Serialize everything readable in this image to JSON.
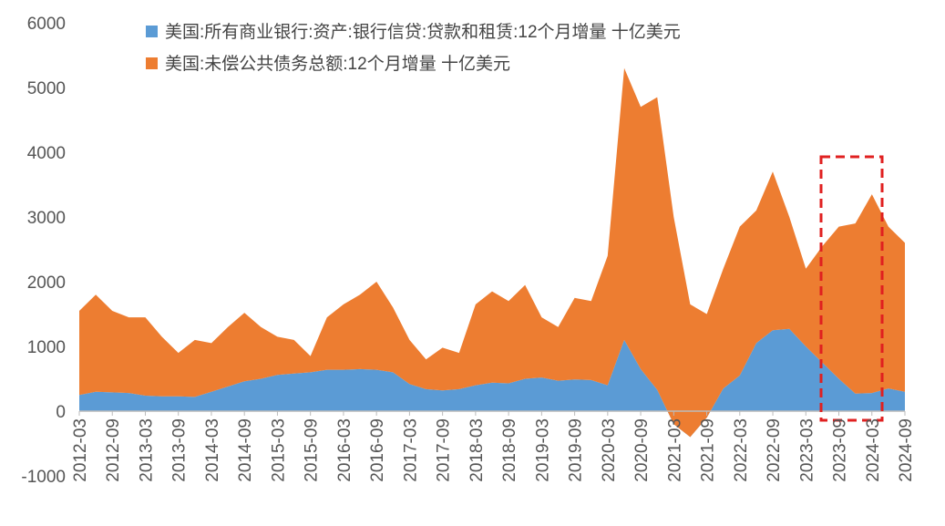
{
  "chart_data": {
    "type": "stacked_area",
    "categories": [
      "2012-03",
      null,
      "2012-09",
      null,
      "2013-03",
      null,
      "2013-09",
      null,
      "2014-03",
      null,
      "2014-09",
      null,
      "2015-03",
      null,
      "2015-09",
      null,
      "2016-03",
      null,
      "2016-09",
      null,
      "2017-03",
      null,
      "2017-09",
      null,
      "2018-03",
      null,
      "2018-09",
      null,
      "2019-03",
      null,
      "2019-09",
      null,
      "2020-03",
      null,
      "2020-09",
      null,
      "2021-03",
      null,
      "2021-09",
      null,
      "2022-03",
      null,
      "2022-09",
      null,
      "2023-03",
      null,
      "2023-09",
      null,
      "2024-03",
      null,
      "2024-09"
    ],
    "series": [
      {
        "name": "美国:所有商业银行:资产:银行信贷:贷款和租赁:12个月增量 十亿美元",
        "color": "#5b9bd5",
        "values": [
          250,
          300,
          290,
          280,
          240,
          230,
          230,
          220,
          300,
          380,
          460,
          500,
          560,
          580,
          600,
          640,
          640,
          650,
          640,
          600,
          420,
          340,
          320,
          340,
          400,
          440,
          430,
          500,
          520,
          470,
          490,
          480,
          400,
          1100,
          650,
          330,
          -200,
          -400,
          -100,
          350,
          550,
          1050,
          1250,
          1270,
          1000,
          750,
          500,
          270,
          280,
          350,
          300
        ]
      },
      {
        "name": "美国:未偿公共债务总额:12个月增量 十亿美元",
        "color": "#ed7d31",
        "values": [
          1300,
          1500,
          1260,
          1170,
          1210,
          920,
          670,
          880,
          750,
          920,
          1060,
          800,
          590,
          520,
          250,
          810,
          1010,
          1150,
          1360,
          1000,
          680,
          460,
          660,
          560,
          1250,
          1410,
          1270,
          1450,
          930,
          830,
          1260,
          1220,
          2000,
          4200,
          4050,
          4520,
          3200,
          2050,
          1600,
          1850,
          2300,
          2050,
          2450,
          1730,
          1200,
          1800,
          2350,
          2630,
          3070,
          2500,
          2300
        ]
      }
    ],
    "ylim": [
      -1000,
      6000
    ],
    "yticks": [
      -1000,
      0,
      1000,
      2000,
      3000,
      4000,
      5000,
      6000
    ],
    "grid": false,
    "legend": "top"
  }
}
